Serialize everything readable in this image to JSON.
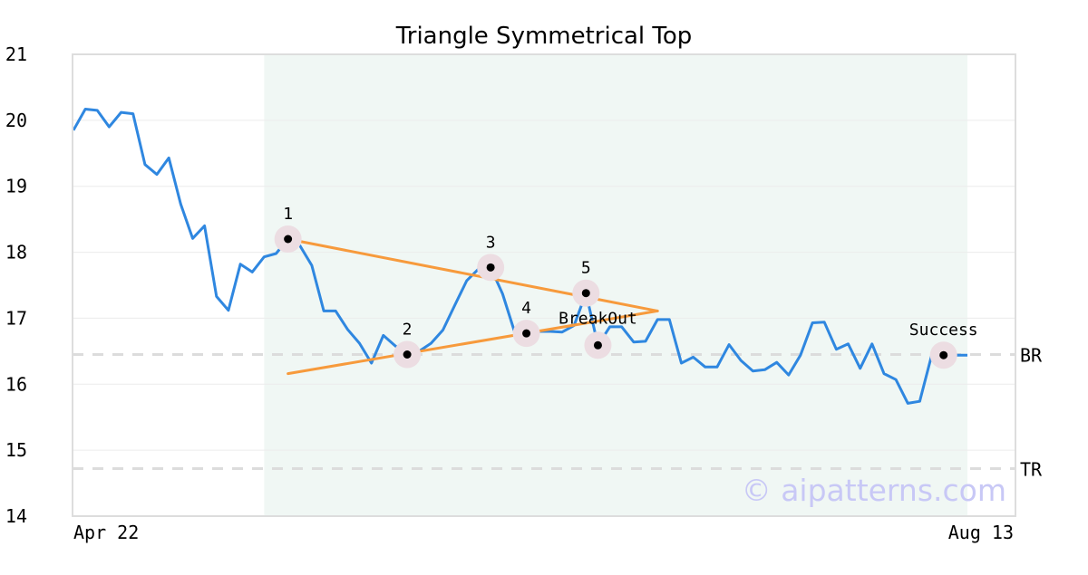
{
  "chart_data": {
    "type": "line",
    "title": "Triangle Symmetrical Top",
    "xlabel": "",
    "ylabel": "",
    "ylim": [
      14,
      21
    ],
    "y_ticks": [
      "14",
      "15",
      "16",
      "17",
      "18",
      "19",
      "20",
      "21"
    ],
    "x_tick_labels": {
      "start": "Apr 22",
      "end": "Aug 13"
    },
    "grid": "horizontal",
    "pattern_window_index": [
      16,
      75
    ],
    "series": [
      {
        "color": "#2f87e0",
        "values": [
          19.85,
          20.17,
          20.15,
          19.9,
          20.12,
          20.1,
          19.33,
          19.18,
          19.43,
          18.73,
          18.21,
          18.4,
          17.33,
          17.12,
          17.82,
          17.7,
          17.93,
          17.98,
          18.2,
          18.1,
          17.8,
          17.11,
          17.11,
          16.83,
          16.62,
          16.32,
          16.74,
          16.58,
          16.45,
          16.5,
          16.62,
          16.82,
          17.2,
          17.57,
          17.75,
          17.77,
          17.37,
          16.8,
          16.77,
          16.8,
          16.8,
          16.79,
          16.89,
          17.38,
          16.59,
          16.87,
          16.87,
          16.64,
          16.65,
          16.98,
          16.98,
          16.32,
          16.41,
          16.26,
          16.26,
          16.6,
          16.36,
          16.2,
          16.22,
          16.33,
          16.14,
          16.44,
          16.93,
          16.94,
          16.53,
          16.61,
          16.24,
          16.61,
          16.16,
          16.07,
          15.71,
          15.74,
          16.44,
          16.44,
          16.44,
          16.44
        ]
      }
    ],
    "trend_lines": [
      {
        "color": "#f79a3c",
        "from": [
          18,
          18.2
        ],
        "to": [
          49,
          17.11
        ]
      },
      {
        "color": "#f79a3c",
        "from": [
          18,
          16.16
        ],
        "to": [
          49,
          17.11
        ]
      }
    ],
    "pivots": [
      {
        "label": "1",
        "index": 18,
        "value": 18.2
      },
      {
        "label": "2",
        "index": 28,
        "value": 16.45
      },
      {
        "label": "3",
        "index": 35,
        "value": 17.77
      },
      {
        "label": "4",
        "index": 38,
        "value": 16.77
      },
      {
        "label": "5",
        "index": 43,
        "value": 17.38
      },
      {
        "label": "BreakOut",
        "index": 44,
        "value": 16.59
      },
      {
        "label": "Success",
        "index": 73,
        "value": 16.44
      }
    ],
    "levels": [
      {
        "label": "BR",
        "value": 16.45
      },
      {
        "label": "TR",
        "value": 14.72
      }
    ],
    "colors": {
      "line": "#2f87e0",
      "trend": "#f79a3c",
      "pattern_band": "#f0f7f4",
      "marker_halo": "#ecdde2",
      "level": "#dcdcdc",
      "frame": "#dddddd",
      "watermark": "#c8c8f6"
    },
    "watermark": "© aipatterns.com"
  }
}
